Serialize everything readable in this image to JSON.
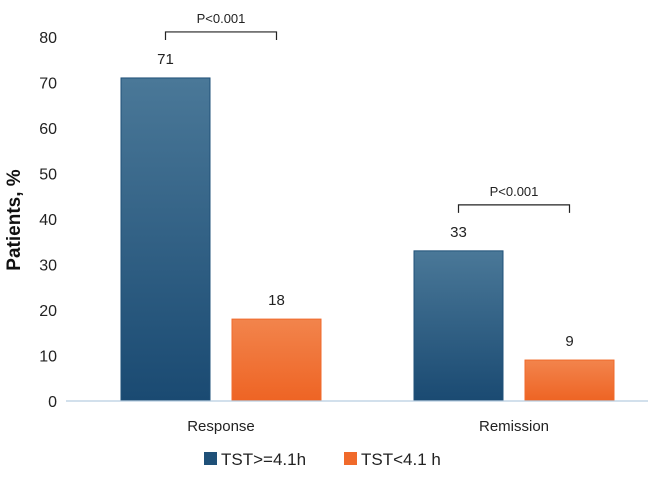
{
  "chart_data": {
    "type": "bar",
    "categories": [
      "Response",
      "Remission"
    ],
    "series": [
      {
        "name": "TST>=4.1h",
        "values": [
          71,
          33
        ],
        "color": "#1f5078"
      },
      {
        "name": "TST<4.1 h",
        "values": [
          18,
          9
        ],
        "color": "#f06a2b"
      }
    ],
    "ylabel": "Patients, %",
    "xlabel": "",
    "ylim": [
      0,
      80
    ],
    "yticks": [
      0,
      10,
      20,
      30,
      40,
      50,
      60,
      70,
      80
    ],
    "grid": false,
    "legend_position": "bottom",
    "annotations": [
      {
        "text": "P<0.001",
        "category": "Response"
      },
      {
        "text": "P<0.001",
        "category": "Remission"
      }
    ]
  }
}
